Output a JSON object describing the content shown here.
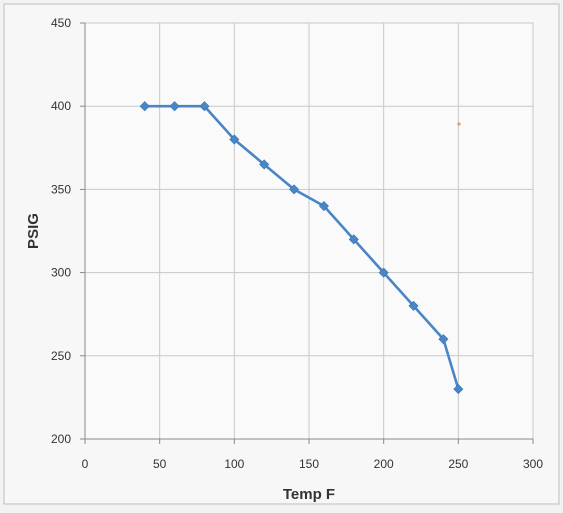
{
  "chart_data": {
    "type": "line",
    "title": "",
    "xlabel": "Temp F",
    "ylabel": "PSIG",
    "xlim": [
      0,
      300
    ],
    "ylim": [
      200,
      450
    ],
    "x_ticks": [
      0,
      50,
      100,
      150,
      200,
      250,
      300
    ],
    "y_ticks": [
      200,
      250,
      300,
      350,
      400,
      450
    ],
    "grid": true,
    "legend": "none",
    "series": [
      {
        "x": [
          40,
          60,
          80,
          100,
          120,
          140,
          160,
          180,
          200,
          220,
          240,
          250
        ],
        "y": [
          400,
          400,
          400,
          380,
          365,
          350,
          340,
          320,
          300,
          280,
          260,
          230
        ],
        "color": "#4a86c5",
        "marker": "diamond"
      }
    ]
  },
  "colors": {
    "background": "#f2f2f2",
    "plot_area": "#fafafa",
    "grid": "#c8c8c8",
    "axis": "#8a8a8a",
    "text": "#333333"
  }
}
